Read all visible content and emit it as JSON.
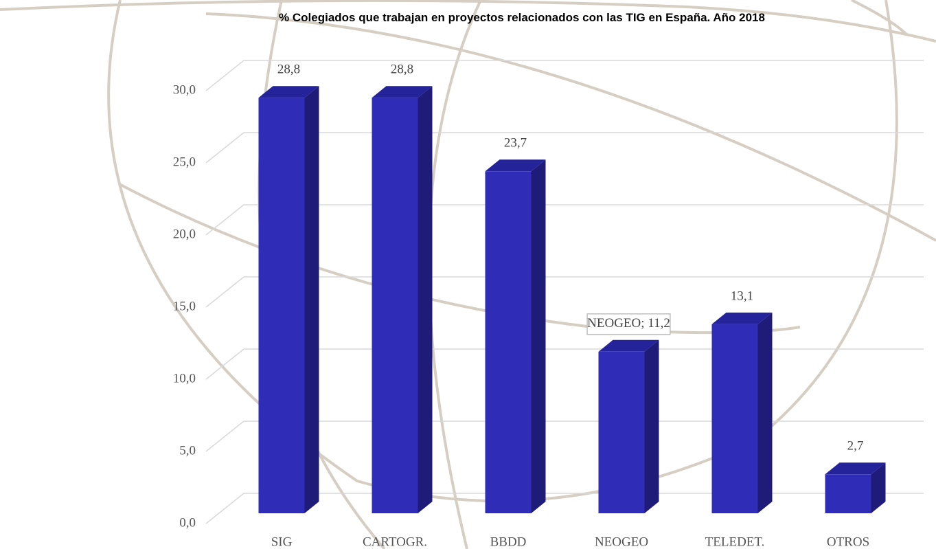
{
  "chart_data": {
    "type": "bar3d",
    "title": "% Colegiados que trabajan en proyectos relacionados con las TIG en España. Año 2018",
    "categories": [
      "SIG",
      "CARTOGR.",
      "BBDD",
      "NEOGEO",
      "TELEDET.",
      "OTROS"
    ],
    "values": [
      28.8,
      28.8,
      23.7,
      11.2,
      13.1,
      2.7
    ],
    "value_labels": [
      "28,8",
      "28,8",
      "23,7",
      "NEOGEO; 11,2",
      "13,1",
      "2,7"
    ],
    "color": "#2f2db8",
    "ylim": [
      0,
      30
    ],
    "yticks": [
      {
        "value": 0,
        "label": "0,0"
      },
      {
        "value": 5,
        "label": "5,0"
      },
      {
        "value": 10,
        "label": "10,0"
      },
      {
        "value": 15,
        "label": "15,0"
      },
      {
        "value": 20,
        "label": "20,0"
      },
      {
        "value": 25,
        "label": "25,0"
      },
      {
        "value": 30,
        "label": "30,0"
      }
    ],
    "grid": true
  }
}
